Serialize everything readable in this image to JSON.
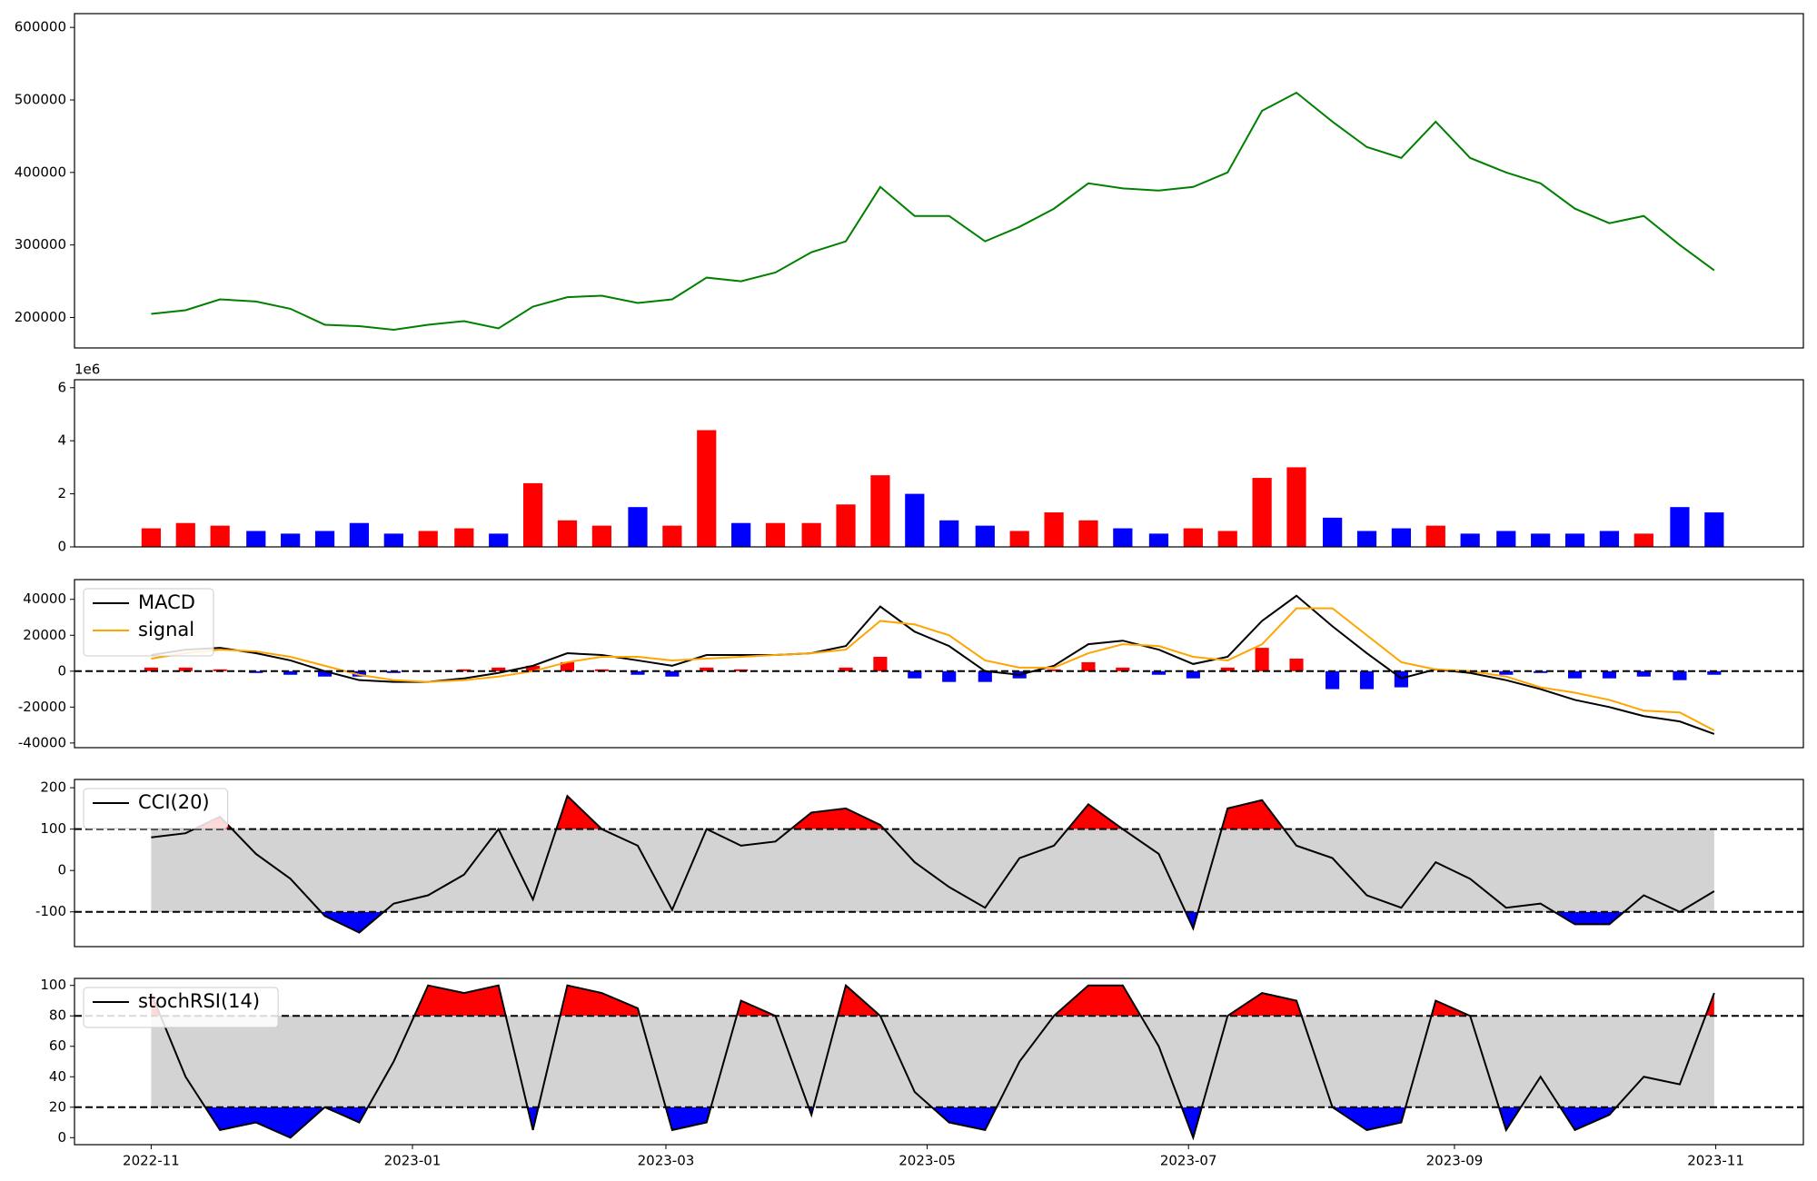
{
  "chart_data": [
    {
      "type": "line",
      "x": [
        2022.833,
        2022.855,
        2022.877,
        2022.9,
        2022.922,
        2022.944,
        2022.966,
        2022.988,
        2023.01,
        2023.033,
        2023.055,
        2023.077,
        2023.099,
        2023.121,
        2023.144,
        2023.166,
        2023.188,
        2023.21,
        2023.232,
        2023.255,
        2023.277,
        2023.299,
        2023.321,
        2023.343,
        2023.366,
        2023.388,
        2023.41,
        2023.432,
        2023.454,
        2023.477,
        2023.499,
        2023.521,
        2023.543,
        2023.565,
        2023.588,
        2023.61,
        2023.632,
        2023.654,
        2023.676,
        2023.699,
        2023.721,
        2023.743,
        2023.765,
        2023.787,
        2023.81,
        2023.832
      ],
      "xlim": [
        2022.784,
        2023.889
      ],
      "ylim": [
        158000,
        619000
      ],
      "yticks": [
        200000,
        300000,
        400000,
        500000,
        600000
      ],
      "series": [
        {
          "color": "#008000",
          "values": [
            205000,
            210000,
            225000,
            222000,
            212000,
            190000,
            188000,
            183000,
            190000,
            195000,
            185000,
            215000,
            228000,
            230000,
            220000,
            225000,
            255000,
            250000,
            262000,
            290000,
            305000,
            380000,
            340000,
            340000,
            305000,
            325000,
            350000,
            385000,
            378000,
            375000,
            380000,
            400000,
            485000,
            510000,
            470000,
            435000,
            420000,
            470000,
            420000,
            400000,
            385000,
            350000,
            330000,
            340000,
            300000,
            265000
          ]
        }
      ]
    },
    {
      "type": "bar",
      "x": [
        2022.833,
        2022.855,
        2022.877,
        2022.9,
        2022.922,
        2022.944,
        2022.966,
        2022.988,
        2023.01,
        2023.033,
        2023.055,
        2023.077,
        2023.099,
        2023.121,
        2023.144,
        2023.166,
        2023.188,
        2023.21,
        2023.232,
        2023.255,
        2023.277,
        2023.299,
        2023.321,
        2023.343,
        2023.366,
        2023.388,
        2023.41,
        2023.432,
        2023.454,
        2023.477,
        2023.499,
        2023.521,
        2023.543,
        2023.565,
        2023.588,
        2023.61,
        2023.632,
        2023.654,
        2023.676,
        2023.699,
        2023.721,
        2023.743,
        2023.765,
        2023.787,
        2023.81,
        2023.832
      ],
      "xlim": [
        2022.784,
        2023.889
      ],
      "ylim": [
        0,
        6300000
      ],
      "yticks": [
        0,
        {
          "value": 2000000,
          "label": "2"
        },
        {
          "value": 4000000,
          "label": "4"
        },
        {
          "value": 6000000,
          "label": "6"
        }
      ],
      "offset_text": "1e6",
      "values": [
        700000,
        900000,
        800000,
        600000,
        500000,
        600000,
        900000,
        500000,
        600000,
        700000,
        500000,
        2400000,
        1000000,
        800000,
        1500000,
        800000,
        4400000,
        900000,
        900000,
        900000,
        1600000,
        2700000,
        2000000,
        1000000,
        800000,
        600000,
        1300000,
        1000000,
        700000,
        500000,
        700000,
        600000,
        2600000,
        3000000,
        1100000,
        600000,
        700000,
        800000,
        500000,
        600000,
        500000,
        500000,
        600000,
        500000,
        1500000,
        1300000
      ],
      "colors": [
        "#ff0000",
        "#ff0000",
        "#ff0000",
        "#0000ff",
        "#0000ff",
        "#0000ff",
        "#0000ff",
        "#0000ff",
        "#ff0000",
        "#ff0000",
        "#0000ff",
        "#ff0000",
        "#ff0000",
        "#ff0000",
        "#0000ff",
        "#ff0000",
        "#ff0000",
        "#0000ff",
        "#ff0000",
        "#ff0000",
        "#ff0000",
        "#ff0000",
        "#0000ff",
        "#0000ff",
        "#0000ff",
        "#ff0000",
        "#ff0000",
        "#ff0000",
        "#0000ff",
        "#0000ff",
        "#ff0000",
        "#ff0000",
        "#ff0000",
        "#ff0000",
        "#0000ff",
        "#0000ff",
        "#0000ff",
        "#ff0000",
        "#0000ff",
        "#0000ff",
        "#0000ff",
        "#0000ff",
        "#0000ff",
        "#ff0000",
        "#0000ff",
        "#0000ff"
      ]
    },
    {
      "type": "line",
      "x": [
        2022.833,
        2022.855,
        2022.877,
        2022.9,
        2022.922,
        2022.944,
        2022.966,
        2022.988,
        2023.01,
        2023.033,
        2023.055,
        2023.077,
        2023.099,
        2023.121,
        2023.144,
        2023.166,
        2023.188,
        2023.21,
        2023.232,
        2023.255,
        2023.277,
        2023.299,
        2023.321,
        2023.343,
        2023.366,
        2023.388,
        2023.41,
        2023.432,
        2023.454,
        2023.477,
        2023.499,
        2023.521,
        2023.543,
        2023.565,
        2023.588,
        2023.61,
        2023.632,
        2023.654,
        2023.676,
        2023.699,
        2023.721,
        2023.743,
        2023.765,
        2023.787,
        2023.81,
        2023.832
      ],
      "xlim": [
        2022.784,
        2023.889
      ],
      "ylim": [
        -42600,
        51000
      ],
      "yticks": [
        -40000,
        -20000,
        0,
        20000,
        40000
      ],
      "levels": [
        0
      ],
      "series": [
        {
          "name": "MACD",
          "color": "#000000",
          "values": [
            9000,
            12000,
            13000,
            10000,
            6000,
            0,
            -5000,
            -6000,
            -6000,
            -4000,
            -1000,
            3000,
            10000,
            9000,
            6000,
            3000,
            9000,
            9000,
            9000,
            10000,
            14000,
            36000,
            22000,
            14000,
            0,
            -2000,
            3000,
            15000,
            17000,
            12000,
            4000,
            8000,
            28000,
            42000,
            25000,
            10000,
            -4000,
            1000,
            -1000,
            -5000,
            -10000,
            -16000,
            -20000,
            -25000,
            -28000,
            -35000
          ]
        },
        {
          "name": "signal",
          "color": "#ffa500",
          "values": [
            7000,
            10000,
            12000,
            11000,
            8000,
            3000,
            -2000,
            -5000,
            -6000,
            -5000,
            -3000,
            0,
            5000,
            8000,
            8000,
            6000,
            7000,
            8000,
            9000,
            10000,
            12000,
            28000,
            26000,
            20000,
            6000,
            2000,
            2000,
            10000,
            15000,
            14000,
            8000,
            6000,
            15000,
            35000,
            35000,
            20000,
            5000,
            1000,
            0,
            -3000,
            -9000,
            -12000,
            -16000,
            -22000,
            -23000,
            -33000
          ]
        }
      ],
      "histogram": {
        "pos_color": "#ff0000",
        "neg_color": "#0000ff",
        "values": [
          2000,
          2000,
          1000,
          -1000,
          -2000,
          -3000,
          -3000,
          -1000,
          0,
          1000,
          2000,
          3000,
          5000,
          1000,
          -2000,
          -3000,
          2000,
          1000,
          0,
          0,
          2000,
          8000,
          -4000,
          -6000,
          -6000,
          -4000,
          1000,
          5000,
          2000,
          -2000,
          -4000,
          2000,
          13000,
          7000,
          -10000,
          -10000,
          -9000,
          0,
          -1000,
          -2000,
          -1000,
          -4000,
          -4000,
          -3000,
          -5000,
          -2000
        ]
      }
    },
    {
      "type": "line",
      "x": [
        2022.833,
        2022.855,
        2022.877,
        2022.9,
        2022.922,
        2022.944,
        2022.966,
        2022.988,
        2023.01,
        2023.033,
        2023.055,
        2023.077,
        2023.099,
        2023.121,
        2023.144,
        2023.166,
        2023.188,
        2023.21,
        2023.232,
        2023.255,
        2023.277,
        2023.299,
        2023.321,
        2023.343,
        2023.366,
        2023.388,
        2023.41,
        2023.432,
        2023.454,
        2023.477,
        2023.499,
        2023.521,
        2023.543,
        2023.565,
        2023.588,
        2023.61,
        2023.632,
        2023.654,
        2023.676,
        2023.699,
        2023.721,
        2023.743,
        2023.765,
        2023.787,
        2023.81,
        2023.832
      ],
      "xlim": [
        2022.784,
        2023.889
      ],
      "ylim": [
        -184,
        220
      ],
      "yticks": [
        -100,
        0,
        100,
        200
      ],
      "levels": [
        -100,
        100
      ],
      "band_color": "#d3d3d3",
      "above_color": "#ff0000",
      "below_color": "#0000ff",
      "series": [
        {
          "name": "CCI(20)",
          "color": "#000000",
          "values": [
            80,
            90,
            130,
            40,
            -20,
            -110,
            -150,
            -80,
            -60,
            -10,
            100,
            -70,
            180,
            100,
            60,
            -95,
            100,
            60,
            70,
            140,
            150,
            110,
            20,
            -40,
            -90,
            30,
            60,
            160,
            100,
            40,
            -140,
            150,
            170,
            60,
            30,
            -60,
            -90,
            20,
            -20,
            -90,
            -80,
            -130,
            -130,
            -60,
            -100,
            -50
          ]
        }
      ]
    },
    {
      "type": "line",
      "x": [
        2022.833,
        2022.855,
        2022.877,
        2022.9,
        2022.922,
        2022.944,
        2022.966,
        2022.988,
        2023.01,
        2023.033,
        2023.055,
        2023.077,
        2023.099,
        2023.121,
        2023.144,
        2023.166,
        2023.188,
        2023.21,
        2023.232,
        2023.255,
        2023.277,
        2023.299,
        2023.321,
        2023.343,
        2023.366,
        2023.388,
        2023.41,
        2023.432,
        2023.454,
        2023.477,
        2023.499,
        2023.521,
        2023.543,
        2023.565,
        2023.588,
        2023.61,
        2023.632,
        2023.654,
        2023.676,
        2023.699,
        2023.721,
        2023.743,
        2023.765,
        2023.787,
        2023.81,
        2023.832
      ],
      "xlim": [
        2022.784,
        2023.889
      ],
      "xticks": [
        {
          "value": 2022.833,
          "label": "2022-11"
        },
        {
          "value": 2023.0,
          "label": "2023-01"
        },
        {
          "value": 2023.162,
          "label": "2023-03"
        },
        {
          "value": 2023.329,
          "label": "2023-05"
        },
        {
          "value": 2023.496,
          "label": "2023-07"
        },
        {
          "value": 2023.666,
          "label": "2023-09"
        },
        {
          "value": 2023.833,
          "label": "2023-11"
        }
      ],
      "ylim": [
        -4.6,
        104.6
      ],
      "yticks": [
        0,
        20,
        40,
        60,
        80,
        100
      ],
      "levels": [
        20,
        80
      ],
      "band_color": "#d3d3d3",
      "above_color": "#ff0000",
      "below_color": "#0000ff",
      "series": [
        {
          "name": "stochRSI(14)",
          "color": "#000000",
          "values": [
            95,
            40,
            5,
            10,
            0,
            20,
            10,
            50,
            100,
            95,
            100,
            5,
            100,
            95,
            85,
            5,
            10,
            90,
            80,
            15,
            100,
            80,
            30,
            10,
            5,
            50,
            80,
            100,
            100,
            60,
            0,
            80,
            95,
            90,
            20,
            5,
            10,
            90,
            80,
            5,
            40,
            5,
            15,
            40,
            35,
            95
          ]
        }
      ]
    }
  ]
}
